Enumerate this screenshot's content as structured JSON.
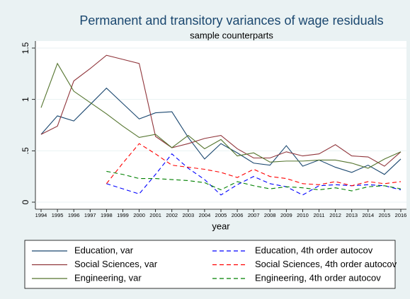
{
  "chart_data": {
    "type": "line",
    "title": "Permanent and transitory variances of wage residuals",
    "subtitle": "sample counterparts",
    "x_label": "year",
    "x": [
      1994,
      1995,
      1996,
      1997,
      1998,
      1999,
      2000,
      2001,
      2002,
      2003,
      2004,
      2005,
      2006,
      2007,
      2008,
      2009,
      2010,
      2011,
      2012,
      2013,
      2014,
      2015,
      2016
    ],
    "xlim": [
      1994,
      2016
    ],
    "xticks": [
      1994,
      1995,
      1996,
      1997,
      1998,
      1999,
      2000,
      2001,
      2002,
      2003,
      2004,
      2005,
      2006,
      2007,
      2008,
      2009,
      2010,
      2011,
      2012,
      2013,
      2014,
      2015,
      2016
    ],
    "ylim": [
      0,
      1.5
    ],
    "yticks": [
      0,
      {
        "value": 0.5,
        "label": ".5"
      },
      1,
      1.5
    ],
    "grid": true,
    "series": [
      {
        "name": "Education, var",
        "color": "#1a476f",
        "line_style": "solid",
        "values": [
          0.66,
          0.84,
          0.79,
          0.95,
          1.11,
          0.96,
          0.81,
          0.87,
          0.88,
          0.63,
          0.42,
          0.57,
          0.48,
          0.38,
          0.36,
          0.55,
          0.35,
          0.41,
          0.34,
          0.29,
          0.36,
          0.27,
          0.42
        ]
      },
      {
        "name": "Social Sciences, var",
        "color": "#90353b",
        "line_style": "solid",
        "values": [
          0.66,
          0.74,
          1.18,
          1.3,
          1.43,
          1.39,
          1.35,
          0.64,
          0.53,
          0.57,
          0.62,
          0.65,
          0.52,
          0.43,
          0.43,
          0.49,
          0.45,
          0.47,
          0.56,
          0.45,
          0.44,
          0.35,
          0.49
        ]
      },
      {
        "name": "Engineering, var",
        "color": "#55752f",
        "line_style": "solid",
        "values": [
          0.92,
          1.35,
          1.08,
          0.97,
          0.86,
          0.74,
          0.63,
          0.66,
          0.53,
          0.65,
          0.52,
          0.61,
          0.45,
          0.48,
          0.39,
          0.4,
          0.4,
          0.41,
          0.41,
          0.38,
          0.33,
          0.42,
          0.49
        ]
      },
      {
        "name": "Education, 4th order autocov",
        "color": "#0000ff",
        "line_style": "dashed",
        "values": [
          null,
          null,
          null,
          null,
          0.18,
          0.13,
          0.08,
          0.27,
          0.47,
          0.33,
          0.22,
          0.07,
          0.17,
          0.25,
          0.18,
          0.15,
          0.07,
          0.16,
          0.17,
          0.16,
          0.17,
          0.16,
          0.12
        ]
      },
      {
        "name": "Social Sciences, 4th order autocov",
        "color": "#ff0000",
        "line_style": "dashed",
        "values": [
          null,
          null,
          null,
          null,
          0.18,
          0.38,
          0.57,
          0.47,
          0.36,
          0.34,
          0.32,
          0.29,
          0.24,
          0.32,
          0.25,
          0.23,
          0.18,
          0.17,
          0.2,
          0.16,
          0.2,
          0.18,
          0.2
        ]
      },
      {
        "name": "Engineering, 4th order autocov",
        "color": "#008000",
        "line_style": "dashed",
        "values": [
          null,
          null,
          null,
          null,
          0.3,
          0.27,
          0.23,
          0.23,
          0.22,
          0.21,
          0.19,
          0.12,
          0.2,
          0.16,
          0.13,
          0.15,
          0.14,
          0.12,
          0.14,
          0.11,
          0.15,
          0.16,
          0.13
        ]
      }
    ]
  }
}
